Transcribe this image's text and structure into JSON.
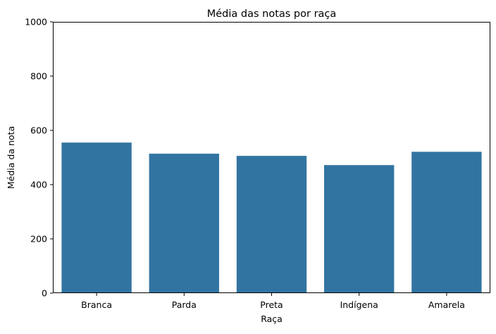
{
  "chart_data": {
    "type": "bar",
    "title": "Média das notas por raça",
    "xlabel": "Raça",
    "ylabel": "Média da nota",
    "categories": [
      "Branca",
      "Parda",
      "Preta",
      "Indígena",
      "Amarela"
    ],
    "values": [
      555,
      514,
      506,
      472,
      521
    ],
    "ylim": [
      0,
      1000
    ],
    "yticks": [
      "0",
      "200",
      "400",
      "600",
      "800",
      "1000"
    ],
    "bar_color": "#3274a1",
    "grid": false,
    "legend": "none"
  }
}
